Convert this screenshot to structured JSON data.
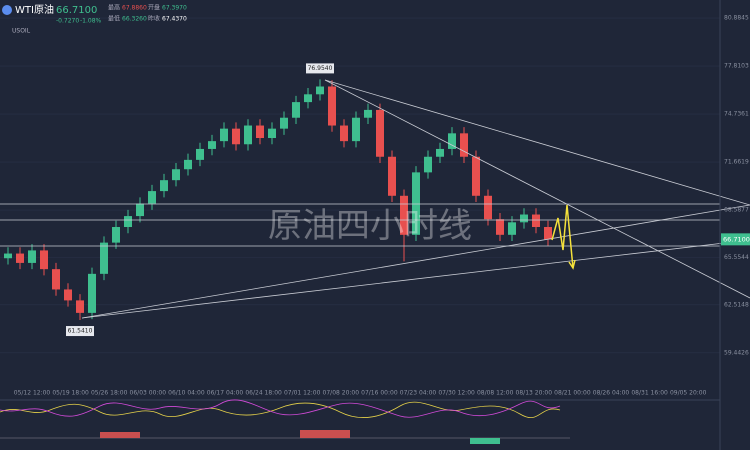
{
  "header": {
    "symbol": "WTI原油",
    "code": "USOIL",
    "price": "66.7100",
    "change": "-0.7270",
    "change_pct": "-1.08%",
    "high_label": "最高",
    "high": "67.8860",
    "open_label": "开盘",
    "open": "67.3970",
    "low_label": "最低",
    "low": "66.3260",
    "prev_label": "昨收",
    "prev": "67.4370"
  },
  "chart_data": {
    "type": "candlestick",
    "watermark": "原油四小时线",
    "categories": [
      "05/12 12:00",
      "05/19 18:00",
      "05/26 18:00",
      "06/03 00:00",
      "06/10 04:00",
      "06/17 04:00",
      "06/24 18:00",
      "07/01 12:00",
      "07/08 20:00",
      "07/16 00:00",
      "07/23 04:00",
      "07/30 12:00",
      "08/08 12:00",
      "08/13 20:00",
      "08/21 00:00",
      "08/26 04:00",
      "08/31 16:00",
      "09/05 20:00"
    ],
    "open": [
      65.5,
      65.8,
      65.2,
      66.0,
      64.8,
      63.5,
      62.8,
      62.0,
      64.5,
      66.5,
      67.5,
      68.2,
      69.0,
      69.8,
      70.5,
      71.2,
      71.8,
      72.5,
      73.0,
      73.8,
      72.8,
      74.0,
      73.2,
      73.8,
      74.5,
      75.5,
      76.0,
      76.5,
      74.0,
      73.0,
      74.5,
      75.0,
      72.0,
      69.5,
      67.0,
      71.0,
      72.0,
      72.5,
      73.5,
      72.0,
      69.5,
      68.0,
      67.0,
      67.8,
      68.3,
      67.5
    ],
    "high": [
      66.2,
      66.2,
      66.4,
      66.4,
      65.2,
      63.9,
      63.2,
      64.9,
      66.9,
      67.9,
      68.6,
      69.4,
      70.2,
      70.9,
      71.6,
      72.2,
      72.9,
      73.4,
      74.2,
      74.2,
      74.4,
      74.4,
      74.2,
      74.9,
      75.9,
      76.4,
      76.954,
      76.9,
      74.4,
      74.9,
      75.4,
      75.4,
      72.4,
      69.9,
      71.4,
      72.4,
      72.9,
      73.9,
      73.9,
      72.4,
      69.9,
      68.4,
      68.2,
      68.7,
      68.7,
      67.9
    ],
    "low": [
      65.1,
      64.8,
      64.8,
      64.4,
      63.1,
      62.4,
      61.541,
      61.6,
      64.1,
      66.1,
      67.1,
      67.8,
      68.6,
      69.4,
      70.1,
      70.8,
      71.4,
      72.1,
      72.6,
      72.4,
      72.4,
      72.8,
      72.8,
      73.4,
      74.1,
      75.1,
      75.6,
      73.6,
      72.6,
      72.6,
      74.1,
      71.6,
      69.1,
      65.3,
      66.6,
      70.6,
      71.6,
      72.1,
      71.6,
      69.1,
      67.6,
      66.6,
      66.6,
      67.4,
      67.1,
      66.3
    ],
    "close": [
      65.8,
      65.2,
      66.0,
      64.8,
      63.5,
      62.8,
      62.0,
      64.5,
      66.5,
      67.5,
      68.2,
      69.0,
      69.8,
      70.5,
      71.2,
      71.8,
      72.5,
      73.0,
      73.8,
      72.8,
      74.0,
      73.2,
      73.8,
      74.5,
      75.5,
      76.0,
      76.5,
      74.0,
      73.0,
      74.5,
      75.0,
      72.0,
      69.5,
      67.0,
      71.0,
      72.0,
      72.5,
      73.5,
      72.0,
      69.5,
      68.0,
      67.0,
      67.8,
      68.3,
      67.5,
      66.71
    ],
    "up_color": "#3fbf8f",
    "down_color": "#e8504f",
    "ylim": [
      56.74,
      82.04
    ],
    "yticks": [
      80.8845,
      77.8103,
      74.7361,
      71.6619,
      68.5877,
      65.5544,
      62.5148,
      59.4426
    ],
    "last_price": {
      "value": 66.71,
      "label": "66.7100"
    },
    "annotations": [
      {
        "text": "76.9540",
        "value": 76.954,
        "index": 26
      },
      {
        "text": "61.5410",
        "value": 61.541,
        "index": 6
      }
    ]
  }
}
